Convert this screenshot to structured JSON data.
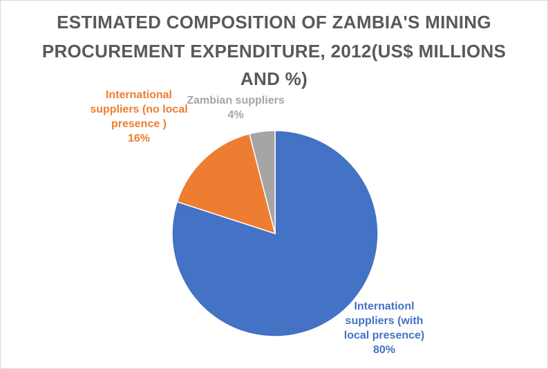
{
  "chart_data": {
    "type": "pie",
    "title_lines": [
      "ESTIMATED COMPOSITION OF ZAMBIA'S MINING",
      "PROCUREMENT EXPENDITURE, 2012(US$ MILLIONS",
      "AND %)"
    ],
    "slices": [
      {
        "label_lines": [
          "Internationl",
          "suppliers (with",
          "local presence)"
        ],
        "value": 80,
        "value_label": "80%",
        "color": "#4472c4"
      },
      {
        "label_lines": [
          "International",
          "suppliers (no local",
          "presence )"
        ],
        "value": 16,
        "value_label": "16%",
        "color": "#ed7d31"
      },
      {
        "label_lines": [
          "Zambian suppliers"
        ],
        "value": 4,
        "value_label": "4%",
        "color": "#a5a5a5"
      }
    ],
    "legend": "none"
  }
}
